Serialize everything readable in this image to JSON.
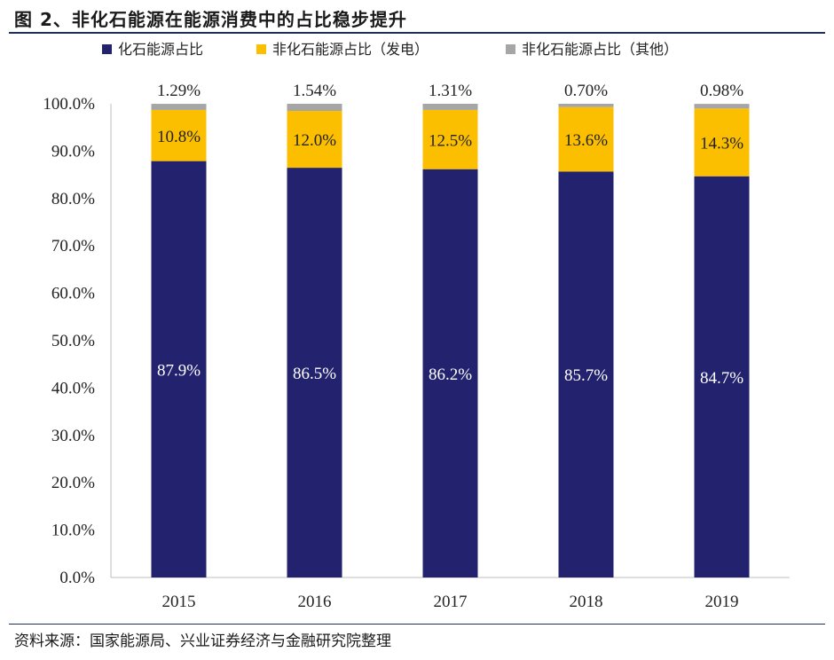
{
  "header": {
    "title": "图 2、非化石能源在能源消费中的占比稳步提升"
  },
  "footer": {
    "source": "资料来源：国家能源局、兴业证券经济与金融研究院整理"
  },
  "colors": {
    "fossil": "#22226e",
    "power": "#fbbf00",
    "other": "#a6a6a6",
    "rule": "#1f2f5c"
  },
  "chart_data": {
    "type": "bar",
    "stacked": true,
    "categories": [
      "2015",
      "2016",
      "2017",
      "2018",
      "2019"
    ],
    "series": [
      {
        "name": "化石能源占比",
        "values": [
          87.9,
          86.5,
          86.2,
          85.7,
          84.7
        ],
        "labels": [
          "87.9%",
          "86.5%",
          "86.2%",
          "85.7%",
          "84.7%"
        ],
        "color": "#22226e"
      },
      {
        "name": "非化石能源占比（发电）",
        "values": [
          10.8,
          12.0,
          12.5,
          13.6,
          14.3
        ],
        "labels": [
          "10.8%",
          "12.0%",
          "12.5%",
          "13.6%",
          "14.3%"
        ],
        "color": "#fbbf00"
      },
      {
        "name": "非化石能源占比（其他）",
        "values": [
          1.29,
          1.54,
          1.31,
          0.7,
          0.98
        ],
        "labels": [
          "1.29%",
          "1.54%",
          "1.31%",
          "0.70%",
          "0.98%"
        ],
        "color": "#a6a6a6"
      }
    ],
    "y_ticks": [
      "0.0%",
      "10.0%",
      "20.0%",
      "30.0%",
      "40.0%",
      "50.0%",
      "60.0%",
      "70.0%",
      "80.0%",
      "90.0%",
      "100.0%"
    ],
    "ylim": [
      0,
      100
    ],
    "grid": false,
    "legend_position": "top"
  }
}
